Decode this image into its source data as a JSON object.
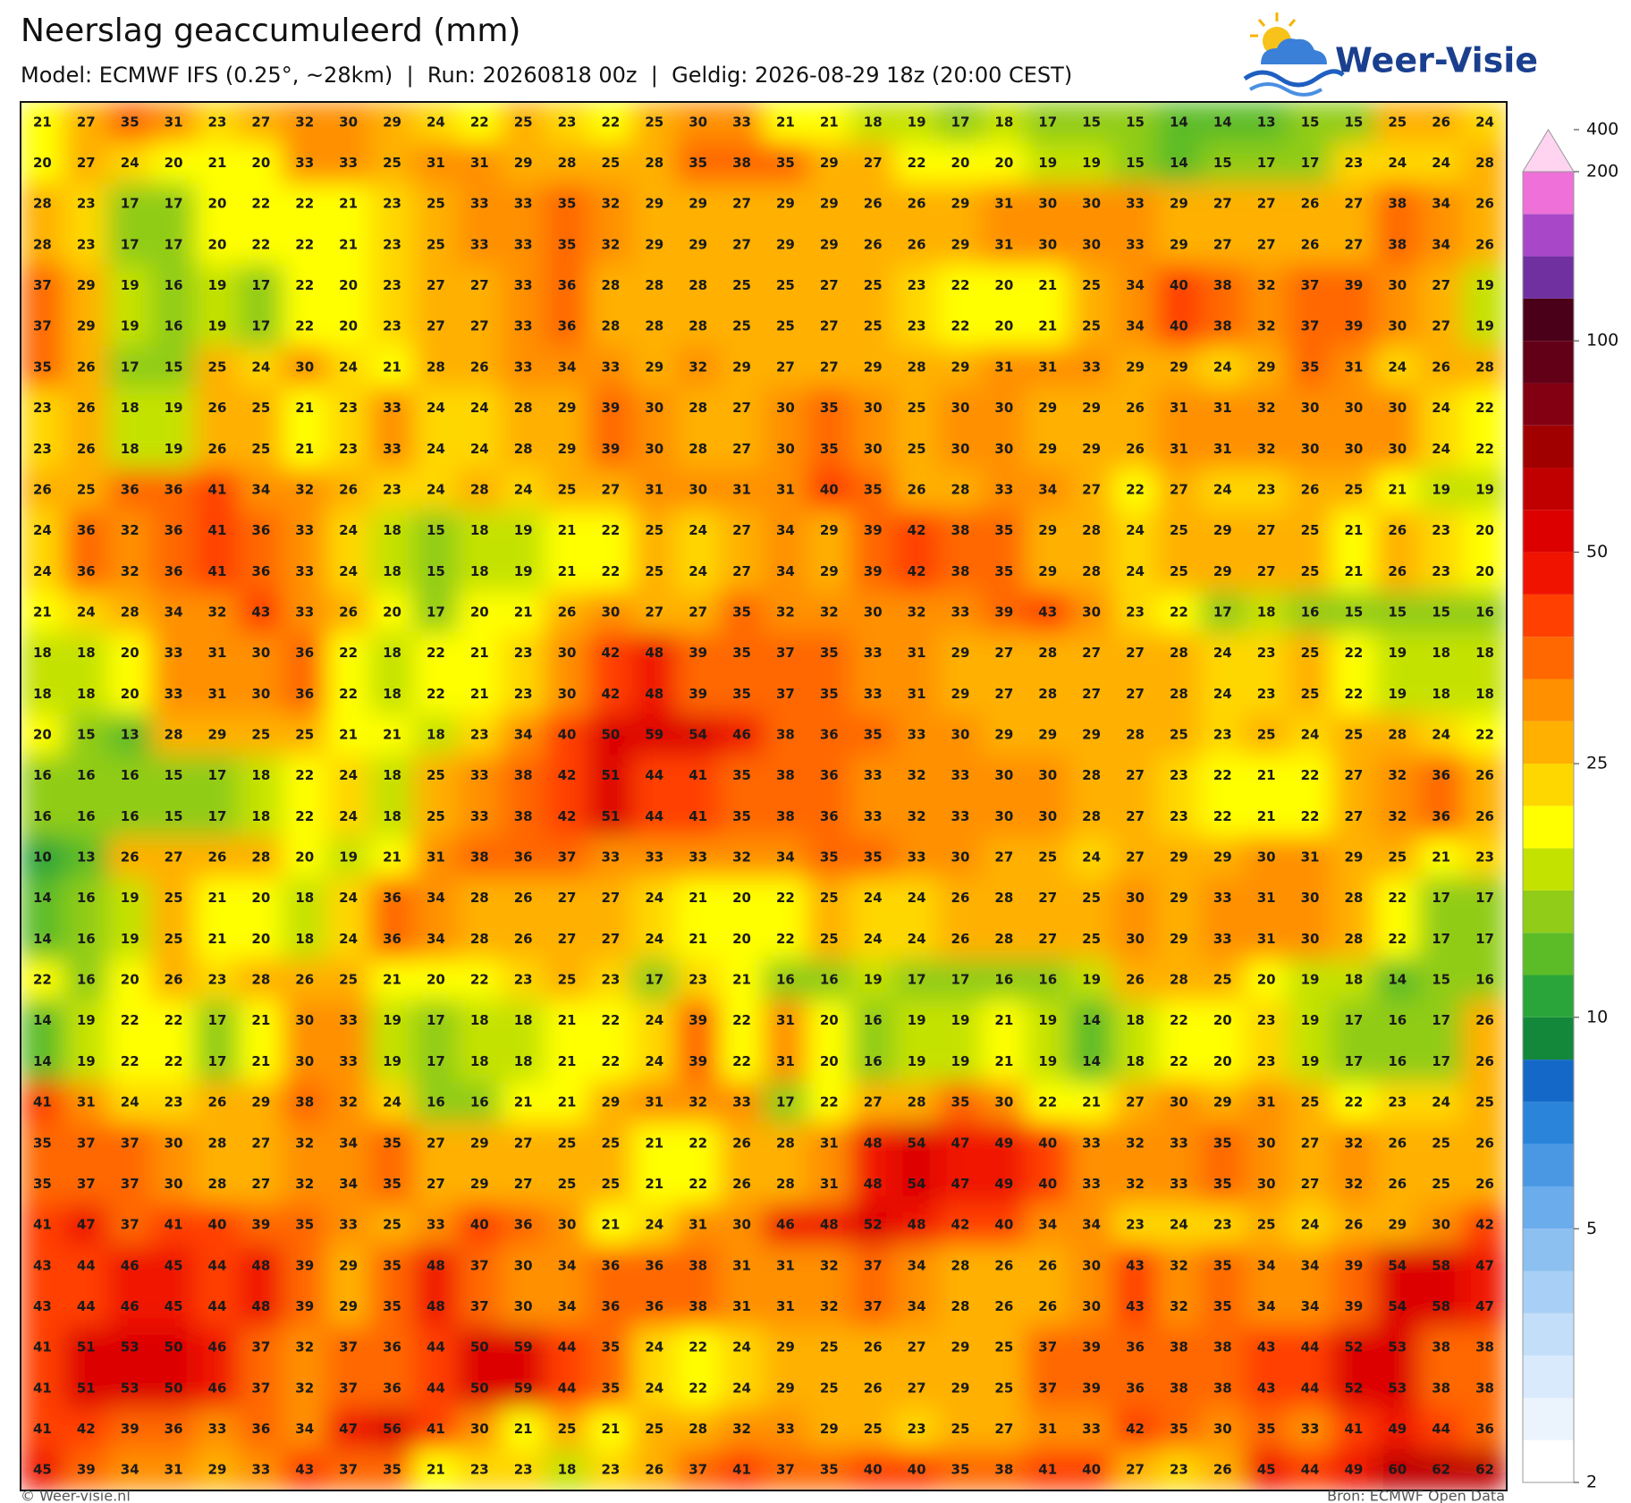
{
  "header": {
    "title": "Neerslag geaccumuleerd (mm)",
    "subtitle": "Model: ECMWF IFS (0.25°, ~28km)  |  Run: 20260818 00z  |  Geldig: 2026-08-29 18z (20:00 CEST)"
  },
  "logo": {
    "text": "Weer-Visie"
  },
  "map": {
    "values": [
      [
        21,
        27,
        35,
        31,
        23,
        27,
        32,
        30,
        29,
        24,
        22,
        25,
        23,
        22,
        25,
        30,
        33,
        21,
        21,
        18,
        19,
        17,
        18,
        17,
        15,
        15,
        14,
        14,
        13,
        15,
        15,
        25,
        26,
        24
      ],
      [
        20,
        27,
        24,
        20,
        21,
        20,
        33,
        33,
        25,
        31,
        31,
        29,
        28,
        25,
        28,
        35,
        38,
        35,
        29,
        27,
        22,
        20,
        20,
        19,
        19,
        15,
        14,
        15,
        17,
        17,
        23,
        24,
        24,
        28
      ],
      [
        28,
        23,
        17,
        17,
        20,
        22,
        22,
        21,
        23,
        25,
        33,
        33,
        35,
        32,
        29,
        29,
        27,
        29,
        29,
        26,
        26,
        29,
        31,
        30,
        30,
        33,
        29,
        27,
        27,
        26,
        27,
        38,
        34,
        26
      ],
      [
        28,
        23,
        17,
        17,
        20,
        22,
        22,
        21,
        23,
        25,
        33,
        33,
        35,
        32,
        29,
        29,
        27,
        29,
        29,
        26,
        26,
        29,
        31,
        30,
        30,
        33,
        29,
        27,
        27,
        26,
        27,
        38,
        34,
        26
      ],
      [
        37,
        29,
        19,
        16,
        19,
        17,
        22,
        20,
        23,
        27,
        27,
        33,
        36,
        28,
        28,
        28,
        25,
        25,
        27,
        25,
        23,
        22,
        20,
        21,
        25,
        34,
        40,
        38,
        32,
        37,
        39,
        30,
        27,
        19
      ],
      [
        37,
        29,
        19,
        16,
        19,
        17,
        22,
        20,
        23,
        27,
        27,
        33,
        36,
        28,
        28,
        28,
        25,
        25,
        27,
        25,
        23,
        22,
        20,
        21,
        25,
        34,
        40,
        38,
        32,
        37,
        39,
        30,
        27,
        19
      ],
      [
        35,
        26,
        17,
        15,
        25,
        24,
        30,
        24,
        21,
        28,
        26,
        33,
        34,
        33,
        29,
        32,
        29,
        27,
        27,
        29,
        28,
        29,
        31,
        31,
        33,
        29,
        29,
        24,
        29,
        35,
        31,
        24,
        26,
        28
      ],
      [
        23,
        26,
        18,
        19,
        26,
        25,
        21,
        23,
        33,
        24,
        24,
        28,
        29,
        39,
        30,
        28,
        27,
        30,
        35,
        30,
        25,
        30,
        30,
        29,
        29,
        26,
        31,
        31,
        32,
        30,
        30,
        30,
        24,
        22
      ],
      [
        23,
        26,
        18,
        19,
        26,
        25,
        21,
        23,
        33,
        24,
        24,
        28,
        29,
        39,
        30,
        28,
        27,
        30,
        35,
        30,
        25,
        30,
        30,
        29,
        29,
        26,
        31,
        31,
        32,
        30,
        30,
        30,
        24,
        22
      ],
      [
        26,
        25,
        36,
        36,
        41,
        34,
        32,
        26,
        23,
        24,
        28,
        24,
        25,
        27,
        31,
        30,
        31,
        31,
        40,
        35,
        26,
        28,
        33,
        34,
        27,
        22,
        27,
        24,
        23,
        26,
        25,
        21,
        19,
        19
      ],
      [
        24,
        36,
        32,
        36,
        41,
        36,
        33,
        24,
        18,
        15,
        18,
        19,
        21,
        22,
        25,
        24,
        27,
        34,
        29,
        39,
        42,
        38,
        35,
        29,
        28,
        24,
        25,
        29,
        27,
        25,
        21,
        26,
        23,
        20
      ],
      [
        24,
        36,
        32,
        36,
        41,
        36,
        33,
        24,
        18,
        15,
        18,
        19,
        21,
        22,
        25,
        24,
        27,
        34,
        29,
        39,
        42,
        38,
        35,
        29,
        28,
        24,
        25,
        29,
        27,
        25,
        21,
        26,
        23,
        20
      ],
      [
        21,
        24,
        28,
        34,
        32,
        43,
        33,
        26,
        20,
        17,
        20,
        21,
        26,
        30,
        27,
        27,
        35,
        32,
        32,
        30,
        32,
        33,
        39,
        43,
        30,
        23,
        22,
        17,
        18,
        16,
        15,
        15,
        15,
        16
      ],
      [
        18,
        18,
        20,
        33,
        31,
        30,
        36,
        22,
        18,
        22,
        21,
        23,
        30,
        42,
        48,
        39,
        35,
        37,
        35,
        33,
        31,
        29,
        27,
        28,
        27,
        27,
        28,
        24,
        23,
        25,
        22,
        19,
        18,
        18
      ],
      [
        18,
        18,
        20,
        33,
        31,
        30,
        36,
        22,
        18,
        22,
        21,
        23,
        30,
        42,
        48,
        39,
        35,
        37,
        35,
        33,
        31,
        29,
        27,
        28,
        27,
        27,
        28,
        24,
        23,
        25,
        22,
        19,
        18,
        18
      ],
      [
        20,
        15,
        13,
        28,
        29,
        25,
        25,
        21,
        21,
        18,
        23,
        34,
        40,
        50,
        59,
        54,
        46,
        38,
        36,
        35,
        33,
        30,
        29,
        29,
        29,
        28,
        25,
        23,
        25,
        24,
        25,
        28,
        24,
        22
      ],
      [
        16,
        16,
        16,
        15,
        17,
        18,
        22,
        24,
        18,
        25,
        33,
        38,
        42,
        51,
        44,
        41,
        35,
        38,
        36,
        33,
        32,
        33,
        30,
        30,
        28,
        27,
        23,
        22,
        21,
        22,
        27,
        32,
        36,
        26
      ],
      [
        16,
        16,
        16,
        15,
        17,
        18,
        22,
        24,
        18,
        25,
        33,
        38,
        42,
        51,
        44,
        41,
        35,
        38,
        36,
        33,
        32,
        33,
        30,
        30,
        28,
        27,
        23,
        22,
        21,
        22,
        27,
        32,
        36,
        26
      ],
      [
        10,
        13,
        26,
        27,
        26,
        28,
        20,
        19,
        21,
        31,
        38,
        36,
        37,
        33,
        33,
        33,
        32,
        34,
        35,
        35,
        33,
        30,
        27,
        25,
        24,
        27,
        29,
        29,
        30,
        31,
        29,
        25,
        21,
        23
      ],
      [
        14,
        16,
        19,
        25,
        21,
        20,
        18,
        24,
        36,
        34,
        28,
        26,
        27,
        27,
        24,
        21,
        20,
        22,
        25,
        24,
        24,
        26,
        28,
        27,
        25,
        30,
        29,
        33,
        31,
        30,
        28,
        22,
        17,
        17
      ],
      [
        14,
        16,
        19,
        25,
        21,
        20,
        18,
        24,
        36,
        34,
        28,
        26,
        27,
        27,
        24,
        21,
        20,
        22,
        25,
        24,
        24,
        26,
        28,
        27,
        25,
        30,
        29,
        33,
        31,
        30,
        28,
        22,
        17,
        17
      ],
      [
        22,
        16,
        20,
        26,
        23,
        28,
        26,
        25,
        21,
        20,
        22,
        23,
        25,
        23,
        17,
        23,
        21,
        16,
        16,
        19,
        17,
        17,
        16,
        16,
        19,
        26,
        28,
        25,
        20,
        19,
        18,
        14,
        15,
        16
      ],
      [
        14,
        19,
        22,
        22,
        17,
        21,
        30,
        33,
        19,
        17,
        18,
        18,
        21,
        22,
        24,
        39,
        22,
        31,
        20,
        16,
        19,
        19,
        21,
        19,
        14,
        18,
        22,
        20,
        23,
        19,
        17,
        16,
        17,
        26
      ],
      [
        14,
        19,
        22,
        22,
        17,
        21,
        30,
        33,
        19,
        17,
        18,
        18,
        21,
        22,
        24,
        39,
        22,
        31,
        20,
        16,
        19,
        19,
        21,
        19,
        14,
        18,
        22,
        20,
        23,
        19,
        17,
        16,
        17,
        26
      ],
      [
        41,
        31,
        24,
        23,
        26,
        29,
        38,
        32,
        24,
        16,
        16,
        21,
        21,
        29,
        31,
        32,
        33,
        17,
        22,
        27,
        28,
        35,
        30,
        22,
        21,
        27,
        30,
        29,
        31,
        25,
        22,
        23,
        24,
        25
      ],
      [
        35,
        37,
        37,
        30,
        28,
        27,
        32,
        34,
        35,
        27,
        29,
        27,
        25,
        25,
        21,
        22,
        26,
        28,
        31,
        48,
        54,
        47,
        49,
        40,
        33,
        32,
        33,
        35,
        30,
        27,
        32,
        26,
        25,
        26
      ],
      [
        35,
        37,
        37,
        30,
        28,
        27,
        32,
        34,
        35,
        27,
        29,
        27,
        25,
        25,
        21,
        22,
        26,
        28,
        31,
        48,
        54,
        47,
        49,
        40,
        33,
        32,
        33,
        35,
        30,
        27,
        32,
        26,
        25,
        26
      ],
      [
        41,
        47,
        37,
        41,
        40,
        39,
        35,
        33,
        25,
        33,
        40,
        36,
        30,
        21,
        24,
        31,
        30,
        46,
        48,
        52,
        48,
        42,
        40,
        34,
        34,
        23,
        24,
        23,
        25,
        24,
        26,
        29,
        30,
        42
      ],
      [
        43,
        44,
        46,
        45,
        44,
        48,
        39,
        29,
        35,
        48,
        37,
        30,
        34,
        36,
        36,
        38,
        31,
        31,
        32,
        37,
        34,
        28,
        26,
        26,
        30,
        43,
        32,
        35,
        34,
        34,
        39,
        54,
        58,
        47
      ],
      [
        43,
        44,
        46,
        45,
        44,
        48,
        39,
        29,
        35,
        48,
        37,
        30,
        34,
        36,
        36,
        38,
        31,
        31,
        32,
        37,
        34,
        28,
        26,
        26,
        30,
        43,
        32,
        35,
        34,
        34,
        39,
        54,
        58,
        47
      ],
      [
        41,
        51,
        53,
        50,
        46,
        37,
        32,
        37,
        36,
        44,
        50,
        59,
        44,
        35,
        24,
        22,
        24,
        29,
        25,
        26,
        27,
        29,
        25,
        37,
        39,
        36,
        38,
        38,
        43,
        44,
        52,
        53,
        38,
        38
      ],
      [
        41,
        51,
        53,
        50,
        46,
        37,
        32,
        37,
        36,
        44,
        50,
        59,
        44,
        35,
        24,
        22,
        24,
        29,
        25,
        26,
        27,
        29,
        25,
        37,
        39,
        36,
        38,
        38,
        43,
        44,
        52,
        53,
        38,
        38
      ],
      [
        41,
        42,
        39,
        36,
        33,
        36,
        34,
        47,
        56,
        41,
        30,
        21,
        25,
        21,
        25,
        28,
        32,
        33,
        29,
        25,
        23,
        25,
        27,
        31,
        33,
        42,
        35,
        30,
        35,
        33,
        41,
        49,
        44,
        36
      ],
      [
        45,
        39,
        34,
        31,
        29,
        33,
        43,
        37,
        35,
        21,
        23,
        23,
        18,
        23,
        26,
        37,
        41,
        37,
        35,
        40,
        40,
        35,
        38,
        41,
        40,
        27,
        23,
        26,
        45,
        44,
        49,
        60,
        62,
        62
      ]
    ]
  },
  "colorbar": {
    "ticks": [
      2,
      5,
      10,
      25,
      50,
      100,
      200,
      400
    ],
    "levels": [
      2,
      2.5,
      3,
      3.5,
      4,
      4.5,
      5,
      6,
      7,
      8,
      9,
      10,
      12.5,
      15,
      17.5,
      20,
      22.5,
      25,
      30,
      35,
      40,
      45,
      50,
      60,
      70,
      80,
      90,
      100,
      125,
      150,
      175,
      200,
      400
    ],
    "colors": [
      "#ffffff",
      "#ebf4fd",
      "#d8eafb",
      "#c2def9",
      "#a8cff5",
      "#8cc0f0",
      "#6aacec",
      "#4a98e4",
      "#2a84da",
      "#1469c8",
      "#14883a",
      "#2aa53a",
      "#5cbc28",
      "#90cc18",
      "#c4e200",
      "#ffff00",
      "#ffd700",
      "#ffb000",
      "#ff9000",
      "#ff6800",
      "#ff4000",
      "#f01400",
      "#dd0000",
      "#c00000",
      "#a00000",
      "#820012",
      "#620018",
      "#4a0018",
      "#7030a0",
      "#a848c8",
      "#ee70d8",
      "#ffd4f0"
    ]
  },
  "footer": {
    "left": "© Weer-visie.nl",
    "right": "Bron: ECMWF Open Data"
  }
}
